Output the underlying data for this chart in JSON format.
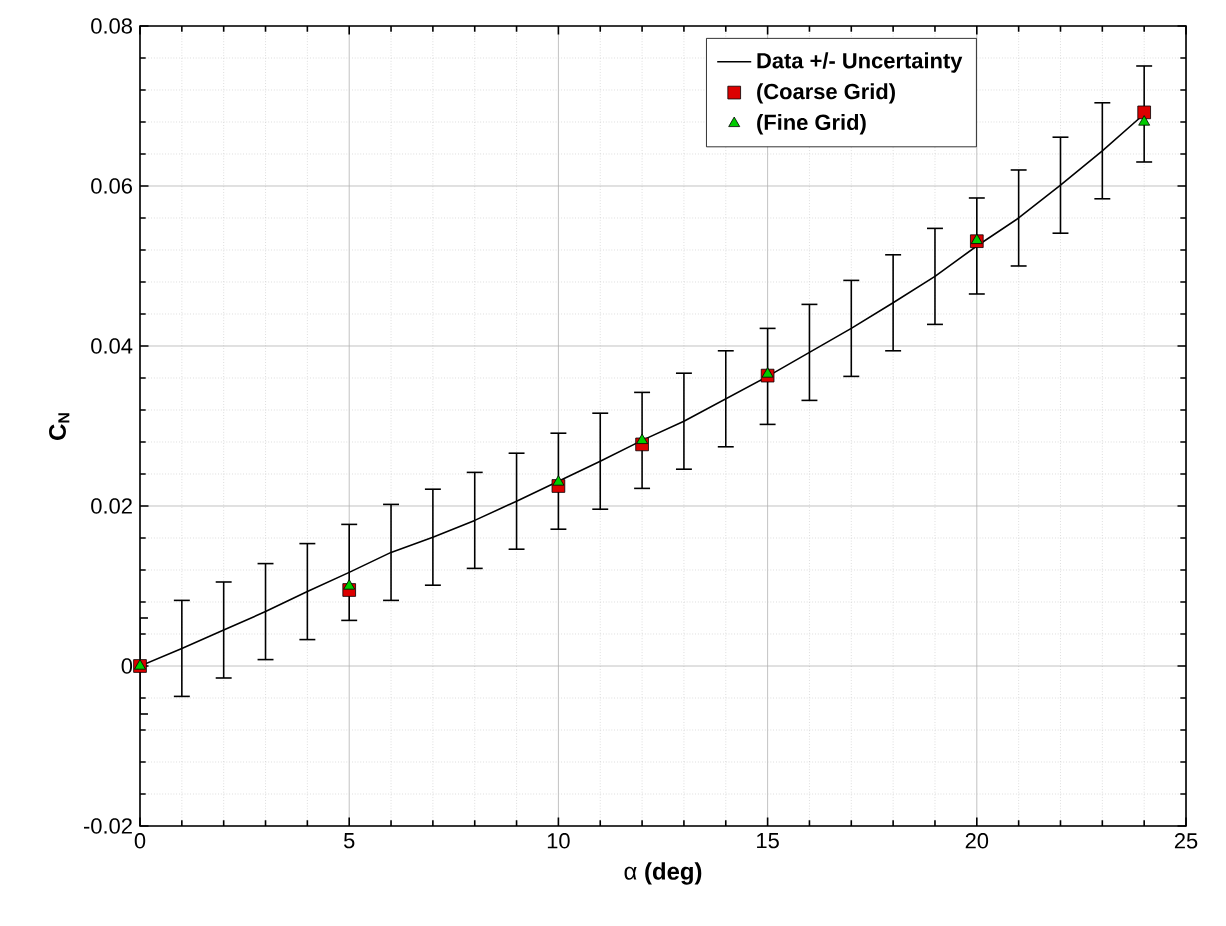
{
  "chart_data": {
    "type": "line",
    "xlabel": "α **(deg)**",
    "ylabel": "**C$_{N}$**",
    "xlim": [
      0,
      25
    ],
    "ylim": [
      -0.02,
      0.08
    ],
    "xticks": [
      0,
      5,
      10,
      15,
      20,
      25
    ],
    "yticks": [
      -0.02,
      0,
      0.02,
      0.04,
      0.06,
      0.08
    ],
    "grid": true,
    "legend": "top right",
    "series": [
      {
        "name": "Data +/- Uncertainty",
        "color": "#000000",
        "marker": "none",
        "x": [
          0,
          1,
          2,
          3,
          4,
          5,
          6,
          7,
          8,
          9,
          10,
          11,
          12,
          13,
          14,
          15,
          16,
          17,
          18,
          19,
          20,
          21,
          22,
          23,
          24
        ],
        "values": [
          0,
          0.0022,
          0.0045,
          0.0068,
          0.0093,
          0.0117,
          0.0142,
          0.0161,
          0.0182,
          0.0206,
          0.0231,
          0.0256,
          0.0282,
          0.0306,
          0.0334,
          0.0362,
          0.0392,
          0.0422,
          0.0454,
          0.0487,
          0.0525,
          0.056,
          0.0601,
          0.0644,
          0.069
        ],
        "errors": [
          0.006,
          0.006,
          0.006,
          0.006,
          0.006,
          0.006,
          0.006,
          0.006,
          0.006,
          0.006,
          0.006,
          0.006,
          0.006,
          0.006,
          0.006,
          0.006,
          0.006,
          0.006,
          0.006,
          0.006,
          0.006,
          0.006,
          0.006,
          0.006,
          0.006
        ]
      },
      {
        "name": "(Coarse Grid)",
        "type": "scatter",
        "color": "#dd0000",
        "marker": "square",
        "x": [
          0,
          5,
          10,
          12,
          15,
          20,
          24
        ],
        "values": [
          0,
          0.0095,
          0.0225,
          0.0277,
          0.0363,
          0.0531,
          0.0692
        ]
      },
      {
        "name": "(Fine Grid)",
        "type": "scatter",
        "color": "#00cc00",
        "marker": "triangle",
        "x": [
          0,
          5,
          10,
          12,
          15,
          20,
          24
        ],
        "values": [
          0,
          0.01,
          0.023,
          0.0282,
          0.0365,
          0.0532,
          0.068
        ]
      }
    ]
  }
}
